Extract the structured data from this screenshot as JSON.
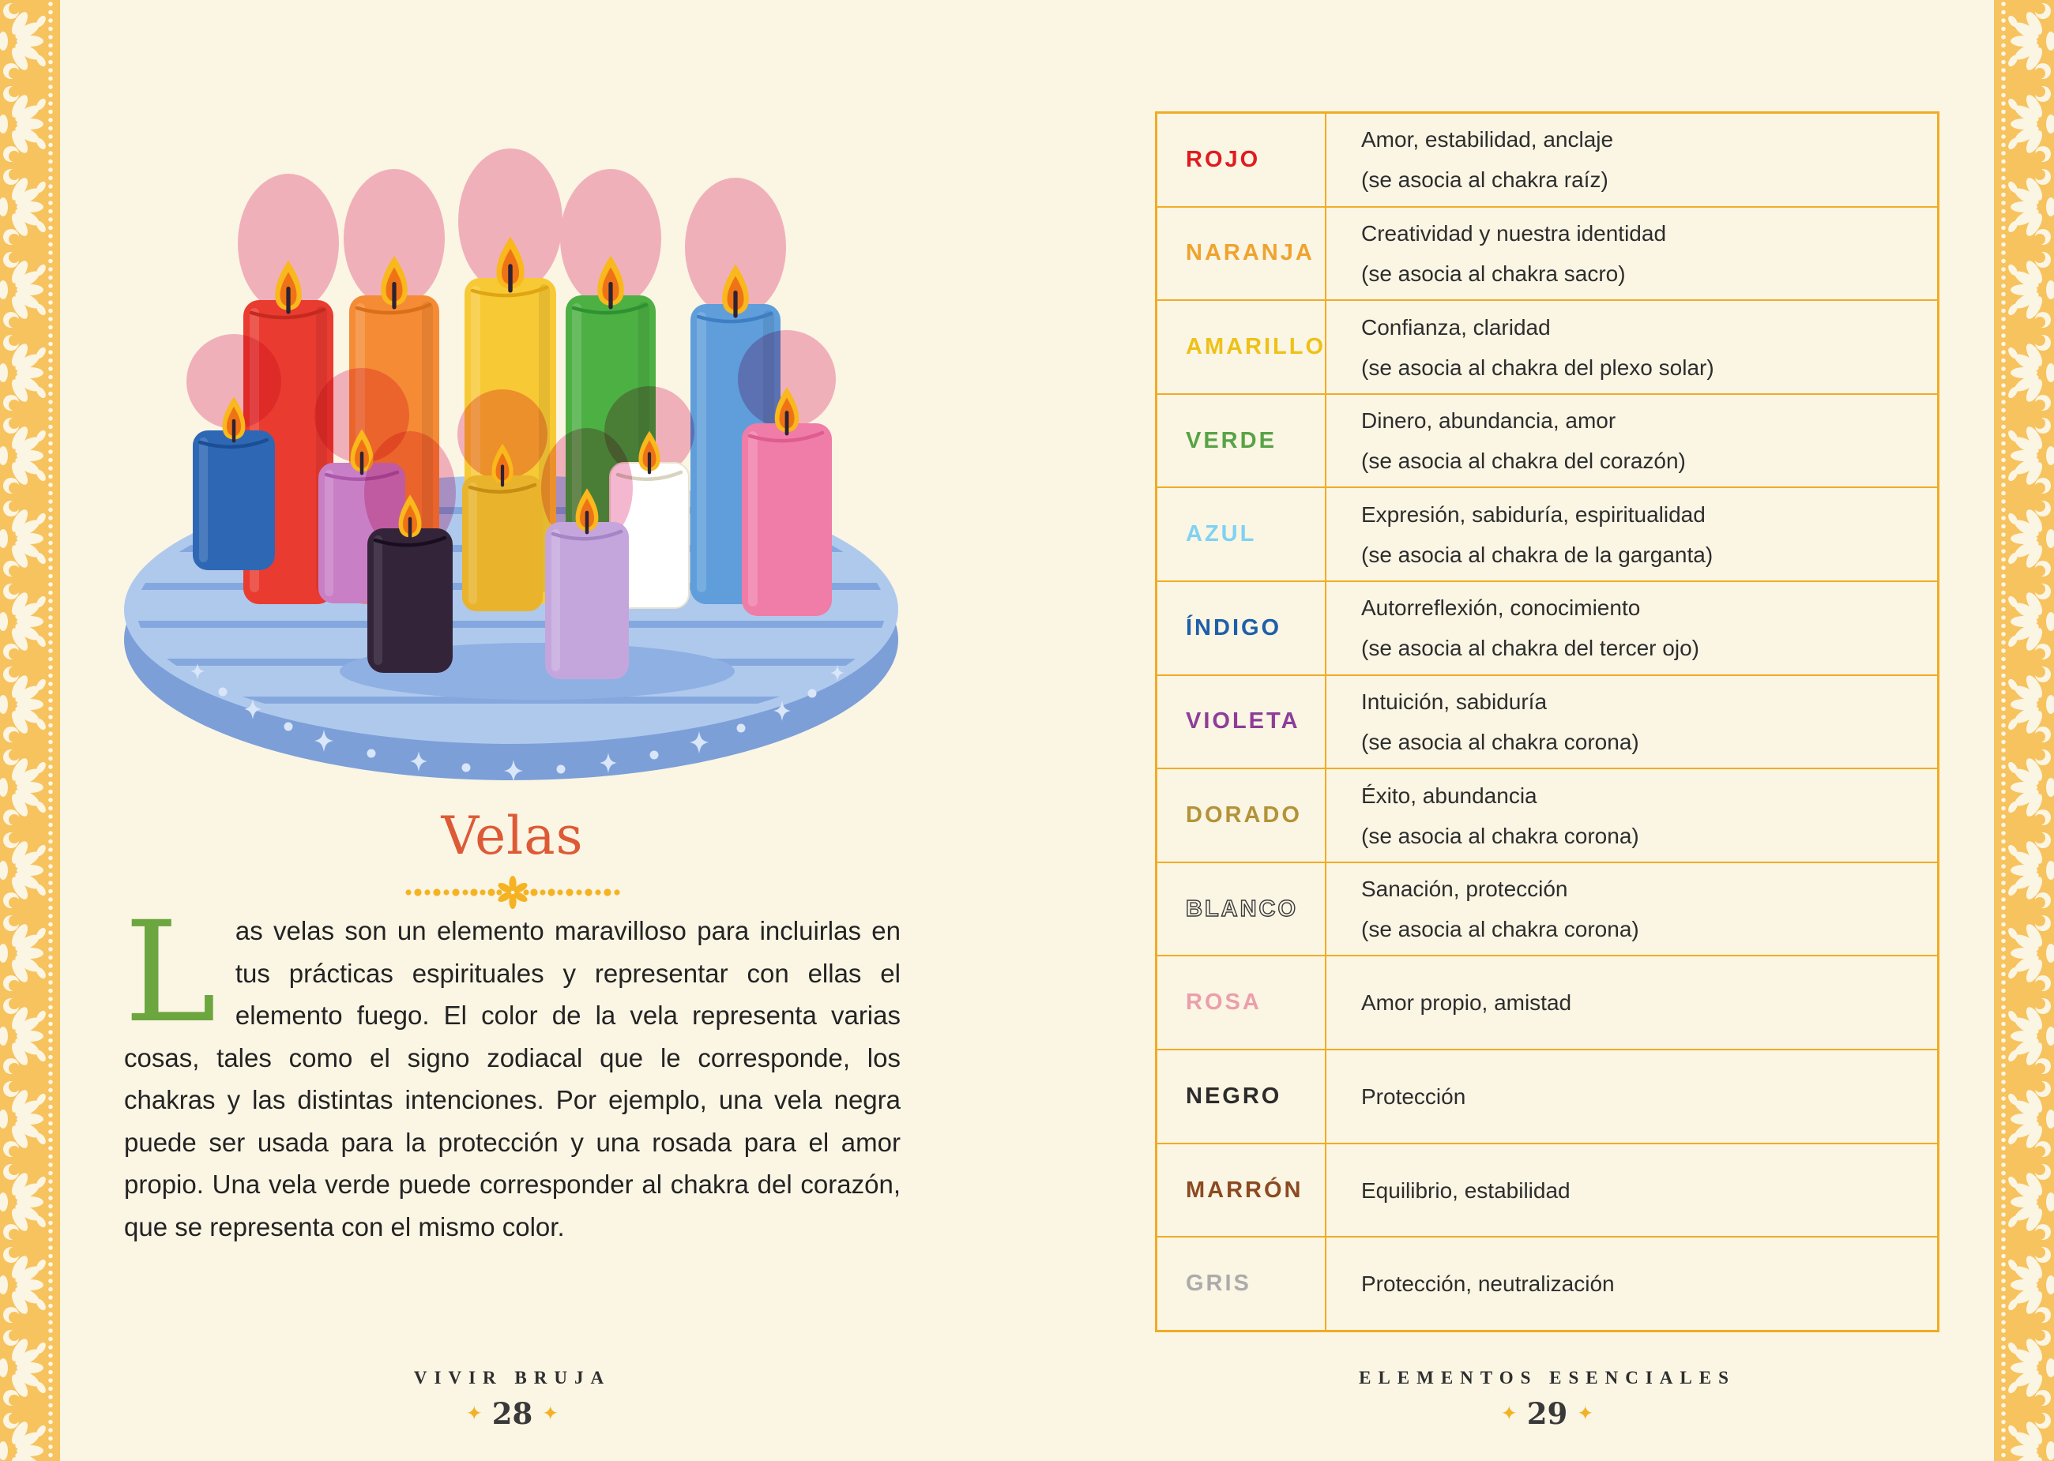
{
  "page_left": {
    "title": "Velas",
    "dropcap": "L",
    "body_after_dropcap": "as velas son un elemento maravilloso para incluirlas en tus prácticas espirituales y representar con ellas el elemento fuego. El color de la vela representa varias cosas, tales como el signo zodiacal que le corresponde, los chakras y las distintas intenciones. Por ejemplo, una vela negra puede ser usada para la protección y una rosada para el amor propio. Una vela verde puede corresponder al chakra del corazón, que se representa con el mismo color.",
    "footer": {
      "running_head": "VIVIR BRUJA",
      "page_number": "28",
      "sparkle": "✦"
    }
  },
  "page_right": {
    "table": {
      "rows": [
        {
          "label": "ROJO",
          "color": "#E01B1F",
          "lines": [
            "Amor, estabilidad, anclaje",
            "(se asocia al chakra raíz)"
          ]
        },
        {
          "label": "NARANJA",
          "color": "#EFA32F",
          "lines": [
            "Creatividad y nuestra identidad",
            "(se asocia al chakra sacro)"
          ]
        },
        {
          "label": "AMARILLO",
          "color": "#EEC117",
          "lines": [
            "Confianza, claridad",
            "(se asocia al chakra del plexo solar)"
          ]
        },
        {
          "label": "VERDE",
          "color": "#57A345",
          "lines": [
            "Dinero, abundancia, amor",
            "(se asocia al chakra del corazón)"
          ]
        },
        {
          "label": "AZUL",
          "color": "#7FD2F2",
          "lines": [
            "Expresión, sabiduría, espiritualidad",
            "(se asocia al chakra de la garganta)"
          ]
        },
        {
          "label": "ÍNDIGO",
          "color": "#1E5FA9",
          "lines": [
            "Autorreflexión, conocimiento",
            "(se asocia al chakra del tercer ojo)"
          ]
        },
        {
          "label": "VIOLETA",
          "color": "#8E3D98",
          "lines": [
            "Intuición, sabiduría",
            "(se asocia al chakra corona)"
          ]
        },
        {
          "label": "DORADO",
          "color": "#B39338",
          "lines": [
            "Éxito, abundancia",
            "(se asocia al chakra corona)"
          ]
        },
        {
          "label": "BLANCO",
          "color": "outline",
          "lines": [
            "Sanación, protección",
            "(se asocia al chakra corona)"
          ]
        },
        {
          "label": "ROSA",
          "color": "#EB9FAB",
          "lines": [
            "Amor propio, amistad"
          ]
        },
        {
          "label": "NEGRO",
          "color": "#2B2B2B",
          "lines": [
            "Protección"
          ]
        },
        {
          "label": "MARRÓN",
          "color": "#8B4A21",
          "lines": [
            "Equilibrio, estabilidad"
          ]
        },
        {
          "label": "GRIS",
          "color": "#ABABAB",
          "lines": [
            "Protección, neutralización"
          ]
        }
      ]
    },
    "footer": {
      "running_head": "ELEMENTOS ESENCIALES",
      "page_number": "29",
      "sparkle": "✦"
    }
  },
  "illustration": {
    "alt": "Twelve lit candles of different colors with pink glows standing on a round striped blue tray decorated with sparkles",
    "candle_colors": [
      "red",
      "orange",
      "yellow",
      "green",
      "blue",
      "dark blue",
      "orchid",
      "gold",
      "white",
      "pink",
      "black",
      "lavender"
    ]
  },
  "palette": {
    "page_background": "#FBF5E4",
    "border_gold": "#F7C35E",
    "table_line": "#F0AC24",
    "title_orange": "#DD5A36",
    "dropcap_green": "#6CA63E",
    "divider_gold": "#F5B324",
    "footer_sparkle": "#F2B227"
  }
}
